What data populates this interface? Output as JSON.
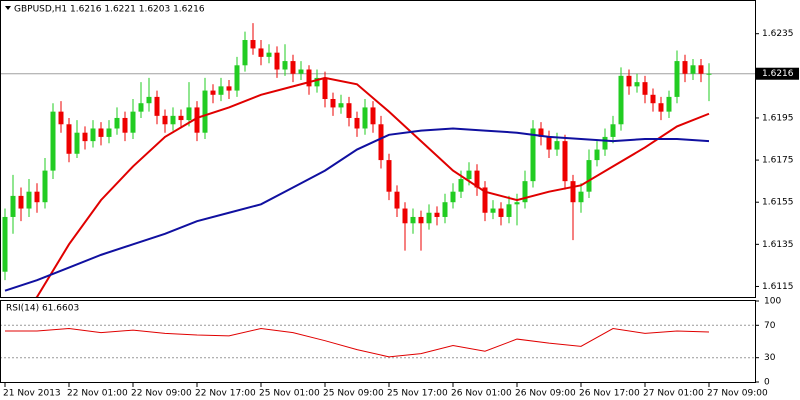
{
  "chart_data": {
    "type": "candlestick",
    "title": "GBPUSD,H1  1.6216 1.6221 1.6203 1.6216",
    "categories": [
      "21 Nov 2013",
      null,
      null,
      null,
      null,
      null,
      null,
      null,
      "22 Nov 01:00",
      null,
      null,
      null,
      null,
      null,
      null,
      null,
      "22 Nov 09:00",
      null,
      null,
      null,
      null,
      null,
      null,
      null,
      "22 Nov 17:00",
      null,
      null,
      null,
      null,
      null,
      null,
      null,
      "25 Nov 01:00",
      null,
      null,
      null,
      null,
      null,
      null,
      null,
      "25 Nov 09:00",
      null,
      null,
      null,
      null,
      null,
      null,
      null,
      "25 Nov 17:00",
      null,
      null,
      null,
      null,
      null,
      null,
      null,
      "26 Nov 01:00",
      null,
      null,
      null,
      null,
      null,
      null,
      null,
      "26 Nov 09:00",
      null,
      null,
      null,
      null,
      null,
      null,
      null,
      "26 Nov 17:00",
      null,
      null,
      null,
      null,
      null,
      null,
      null,
      "27 Nov 01:00",
      null,
      null,
      null,
      null,
      null,
      null,
      null,
      "27 Nov 09:00"
    ],
    "candles": [
      [
        1.6122,
        1.6152,
        1.6118,
        1.6148
      ],
      [
        1.6148,
        1.6168,
        1.614,
        1.6158
      ],
      [
        1.6158,
        1.6162,
        1.6146,
        1.6152
      ],
      [
        1.6152,
        1.6166,
        1.6148,
        1.616
      ],
      [
        1.616,
        1.6164,
        1.615,
        1.6155
      ],
      [
        1.6155,
        1.6176,
        1.6152,
        1.617
      ],
      [
        1.617,
        1.6202,
        1.6166,
        1.6198
      ],
      [
        1.6198,
        1.6203,
        1.6188,
        1.6192
      ],
      [
        1.6192,
        1.6195,
        1.6174,
        1.6178
      ],
      [
        1.6178,
        1.6194,
        1.6176,
        1.6188
      ],
      [
        1.6188,
        1.6191,
        1.618,
        1.6184
      ],
      [
        1.6184,
        1.6194,
        1.6181,
        1.619
      ],
      [
        1.619,
        1.6193,
        1.6182,
        1.6186
      ],
      [
        1.6186,
        1.6194,
        1.6183,
        1.619
      ],
      [
        1.619,
        1.62,
        1.6187,
        1.6195
      ],
      [
        1.6195,
        1.6198,
        1.6184,
        1.6188
      ],
      [
        1.6188,
        1.6204,
        1.6185,
        1.6198
      ],
      [
        1.6198,
        1.6212,
        1.6195,
        1.6202
      ],
      [
        1.6202,
        1.6214,
        1.6198,
        1.6205
      ],
      [
        1.6205,
        1.6208,
        1.6192,
        1.6196
      ],
      [
        1.6196,
        1.6199,
        1.6188,
        1.6192
      ],
      [
        1.6192,
        1.62,
        1.6189,
        1.6196
      ],
      [
        1.6196,
        1.6199,
        1.619,
        1.6194
      ],
      [
        1.6194,
        1.6212,
        1.6191,
        1.62
      ],
      [
        1.62,
        1.6203,
        1.6184,
        1.6188
      ],
      [
        1.6188,
        1.6214,
        1.6185,
        1.6208
      ],
      [
        1.6208,
        1.6211,
        1.6202,
        1.6206
      ],
      [
        1.6206,
        1.6214,
        1.6203,
        1.621
      ],
      [
        1.621,
        1.6213,
        1.6204,
        1.6208
      ],
      [
        1.6208,
        1.6224,
        1.6205,
        1.622
      ],
      [
        1.622,
        1.6236,
        1.6217,
        1.6232
      ],
      [
        1.6232,
        1.624,
        1.6225,
        1.6228
      ],
      [
        1.6228,
        1.6232,
        1.622,
        1.6224
      ],
      [
        1.6224,
        1.623,
        1.6221,
        1.6226
      ],
      [
        1.6226,
        1.6229,
        1.6214,
        1.6218
      ],
      [
        1.6218,
        1.623,
        1.6215,
        1.6222
      ],
      [
        1.6222,
        1.6225,
        1.6212,
        1.6216
      ],
      [
        1.6216,
        1.6222,
        1.6213,
        1.6218
      ],
      [
        1.6218,
        1.622,
        1.6206,
        1.621
      ],
      [
        1.621,
        1.6218,
        1.6207,
        1.6214
      ],
      [
        1.6214,
        1.6217,
        1.62,
        1.6204
      ],
      [
        1.6204,
        1.6207,
        1.6196,
        1.62
      ],
      [
        1.62,
        1.6206,
        1.6197,
        1.6202
      ],
      [
        1.6202,
        1.6205,
        1.6191,
        1.6195
      ],
      [
        1.6195,
        1.6198,
        1.6186,
        1.619
      ],
      [
        1.619,
        1.6204,
        1.6187,
        1.62
      ],
      [
        1.62,
        1.6203,
        1.6188,
        1.6192
      ],
      [
        1.6192,
        1.6196,
        1.6171,
        1.6175
      ],
      [
        1.6175,
        1.6178,
        1.6156,
        1.616
      ],
      [
        1.616,
        1.6163,
        1.6148,
        1.6152
      ],
      [
        1.6152,
        1.6155,
        1.6132,
        1.6145
      ],
      [
        1.6145,
        1.6152,
        1.614,
        1.6148
      ],
      [
        1.6148,
        1.6151,
        1.6132,
        1.6145
      ],
      [
        1.6145,
        1.6154,
        1.6142,
        1.615
      ],
      [
        1.615,
        1.6153,
        1.6144,
        1.6148
      ],
      [
        1.6148,
        1.6159,
        1.6145,
        1.6155
      ],
      [
        1.6155,
        1.6164,
        1.6152,
        1.616
      ],
      [
        1.616,
        1.617,
        1.6157,
        1.6166
      ],
      [
        1.6166,
        1.6174,
        1.6163,
        1.617
      ],
      [
        1.617,
        1.6173,
        1.6158,
        1.6162
      ],
      [
        1.6162,
        1.6165,
        1.6146,
        1.615
      ],
      [
        1.615,
        1.6156,
        1.6147,
        1.6152
      ],
      [
        1.6152,
        1.6155,
        1.6144,
        1.6148
      ],
      [
        1.6148,
        1.6158,
        1.6145,
        1.6154
      ],
      [
        1.6154,
        1.6159,
        1.6144,
        1.6155
      ],
      [
        1.6155,
        1.617,
        1.6152,
        1.6165
      ],
      [
        1.6165,
        1.6194,
        1.6162,
        1.619
      ],
      [
        1.619,
        1.6193,
        1.6182,
        1.6186
      ],
      [
        1.6186,
        1.6189,
        1.6176,
        1.618
      ],
      [
        1.618,
        1.6188,
        1.6177,
        1.6184
      ],
      [
        1.6184,
        1.6187,
        1.6161,
        1.6165
      ],
      [
        1.6165,
        1.6168,
        1.6137,
        1.6155
      ],
      [
        1.6155,
        1.6164,
        1.615,
        1.616
      ],
      [
        1.616,
        1.618,
        1.6157,
        1.6175
      ],
      [
        1.6175,
        1.6184,
        1.6172,
        1.618
      ],
      [
        1.618,
        1.619,
        1.6177,
        1.6186
      ],
      [
        1.6186,
        1.6196,
        1.6183,
        1.6192
      ],
      [
        1.6192,
        1.6219,
        1.6189,
        1.6215
      ],
      [
        1.6215,
        1.6218,
        1.6206,
        1.621
      ],
      [
        1.621,
        1.6216,
        1.6207,
        1.6212
      ],
      [
        1.6212,
        1.6215,
        1.6202,
        1.6206
      ],
      [
        1.6206,
        1.6209,
        1.6198,
        1.6202
      ],
      [
        1.6202,
        1.6205,
        1.6194,
        1.6198
      ],
      [
        1.6198,
        1.6208,
        1.6195,
        1.6205
      ],
      [
        1.6205,
        1.6227,
        1.6202,
        1.6222
      ],
      [
        1.6222,
        1.6225,
        1.6212,
        1.6216
      ],
      [
        1.6216,
        1.6223,
        1.6213,
        1.622
      ],
      [
        1.622,
        1.6223,
        1.6212,
        1.6216
      ],
      [
        1.6216,
        1.6221,
        1.6203,
        1.6216
      ]
    ],
    "up_color": "#22cc22",
    "down_color": "#ee0000",
    "ylim": [
      1.611,
      1.6251
    ],
    "yticks": [
      1.6235,
      1.6215,
      1.6195,
      1.6175,
      1.6155,
      1.6135,
      1.6115
    ],
    "current_price": 1.6216,
    "ma": [
      {
        "color": "#e00000",
        "x": [
          0,
          4,
          8,
          12,
          16,
          20,
          24,
          28,
          32,
          36,
          40,
          44,
          48,
          52,
          56,
          60,
          64,
          68,
          72,
          76,
          80,
          84,
          88
        ],
        "values": [
          1.6095,
          1.611,
          1.6135,
          1.6156,
          1.6172,
          1.6186,
          1.6195,
          1.62,
          1.6206,
          1.621,
          1.6214,
          1.6211,
          1.6198,
          1.6184,
          1.617,
          1.616,
          1.6156,
          1.616,
          1.6163,
          1.6172,
          1.6181,
          1.6191,
          1.6197
        ]
      },
      {
        "color": "#1010a0",
        "x": [
          0,
          4,
          8,
          12,
          16,
          20,
          24,
          28,
          32,
          36,
          40,
          44,
          48,
          52,
          56,
          60,
          64,
          68,
          72,
          76,
          80,
          84,
          88
        ],
        "values": [
          1.6113,
          1.6118,
          1.6124,
          1.613,
          1.6135,
          1.614,
          1.6146,
          1.615,
          1.6154,
          1.6162,
          1.617,
          1.618,
          1.6187,
          1.6189,
          1.619,
          1.6189,
          1.6188,
          1.6186,
          1.6185,
          1.6184,
          1.6185,
          1.6185,
          1.6184
        ]
      }
    ],
    "rsi": {
      "label": "RSI(14) 61.6603",
      "color": "#e00000",
      "ylim": [
        0,
        100
      ],
      "yticks": [
        100,
        70,
        30,
        0
      ],
      "levels": [
        70,
        30
      ],
      "x": [
        0,
        4,
        8,
        12,
        16,
        20,
        24,
        28,
        32,
        36,
        40,
        44,
        48,
        52,
        56,
        60,
        64,
        68,
        72,
        76,
        80,
        84,
        88
      ],
      "values": [
        63,
        63,
        66,
        61,
        64,
        60,
        58,
        57,
        66,
        61,
        51,
        40,
        31,
        35,
        45,
        38,
        53,
        48,
        44,
        66,
        60,
        63,
        61.6603
      ]
    }
  }
}
